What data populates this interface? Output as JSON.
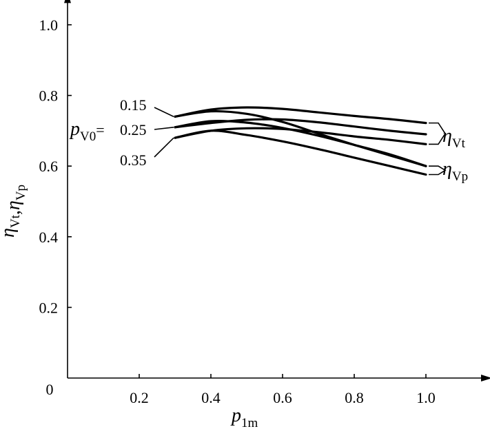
{
  "chart_data": {
    "type": "line",
    "xlabel": {
      "base": "p",
      "sub": "1m"
    },
    "ylabel": {
      "parts": [
        {
          "base": "η",
          "sub": "Vt"
        },
        {
          "base": ",",
          "sub": ""
        },
        {
          "base": "η",
          "sub": "Vp"
        }
      ]
    },
    "xlim": [
      0,
      1.15
    ],
    "ylim": [
      0,
      1.05
    ],
    "origin_label": "0",
    "x_ticks": [
      0.2,
      0.4,
      0.6,
      0.8,
      1.0
    ],
    "x_tick_labels": [
      "0.2",
      "0.4",
      "0.6",
      "0.8",
      "1.0"
    ],
    "y_ticks": [
      0.2,
      0.4,
      0.6,
      0.8,
      1.0
    ],
    "y_tick_labels": [
      "0.2",
      "0.4",
      "0.6",
      "0.8",
      "1.0"
    ],
    "grid": false,
    "parameter": {
      "base": "p",
      "sub": "V0",
      "eq": "="
    },
    "parameter_values": [
      "0.15",
      "0.25",
      "0.35"
    ],
    "group_labels": [
      {
        "base": "η",
        "sub": "Vt"
      },
      {
        "base": "η",
        "sub": "Vp"
      }
    ],
    "series": [
      {
        "group": "Vt",
        "param": "0.15",
        "x": [
          0.3,
          0.4,
          0.5,
          0.6,
          0.7,
          0.8,
          0.9,
          1.0
        ],
        "y": [
          0.74,
          0.76,
          0.766,
          0.762,
          0.752,
          0.742,
          0.733,
          0.722
        ]
      },
      {
        "group": "Vt",
        "param": "0.25",
        "x": [
          0.3,
          0.4,
          0.5,
          0.6,
          0.7,
          0.8,
          0.9,
          1.0
        ],
        "y": [
          0.71,
          0.722,
          0.731,
          0.732,
          0.724,
          0.712,
          0.7,
          0.69
        ]
      },
      {
        "group": "Vt",
        "param": "0.35",
        "x": [
          0.3,
          0.4,
          0.5,
          0.6,
          0.7,
          0.8,
          0.9,
          1.0
        ],
        "y": [
          0.68,
          0.7,
          0.707,
          0.705,
          0.696,
          0.684,
          0.674,
          0.662
        ]
      },
      {
        "group": "Vp",
        "param": "0.15",
        "x": [
          0.3,
          0.4,
          0.5,
          0.6,
          0.7,
          0.8,
          0.9,
          1.0
        ],
        "y": [
          0.74,
          0.755,
          0.748,
          0.725,
          0.692,
          0.66,
          0.63,
          0.6
        ]
      },
      {
        "group": "Vp",
        "param": "0.25",
        "x": [
          0.3,
          0.4,
          0.5,
          0.6,
          0.7,
          0.8,
          0.9,
          1.0
        ],
        "y": [
          0.71,
          0.727,
          0.723,
          0.708,
          0.686,
          0.66,
          0.633,
          0.6
        ]
      },
      {
        "group": "Vp",
        "param": "0.35",
        "x": [
          0.3,
          0.4,
          0.5,
          0.6,
          0.7,
          0.8,
          0.9,
          1.0
        ],
        "y": [
          0.68,
          0.7,
          0.688,
          0.67,
          0.648,
          0.624,
          0.6,
          0.576
        ]
      }
    ]
  }
}
